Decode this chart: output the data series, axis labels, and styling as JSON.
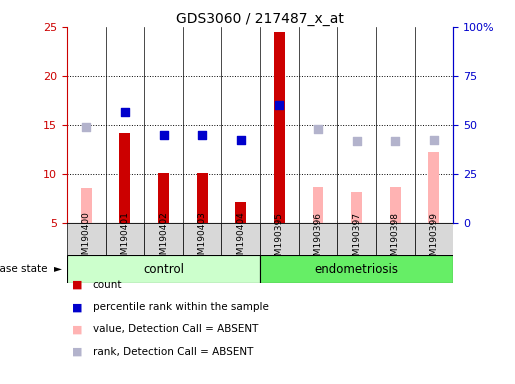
{
  "title": "GDS3060 / 217487_x_at",
  "samples": [
    "GSM190400",
    "GSM190401",
    "GSM190402",
    "GSM190403",
    "GSM190404",
    "GSM190395",
    "GSM190396",
    "GSM190397",
    "GSM190398",
    "GSM190399"
  ],
  "count_bars": [
    null,
    14.2,
    10.1,
    10.1,
    7.1,
    24.5,
    null,
    null,
    null,
    null
  ],
  "value_absent_bars": [
    8.5,
    null,
    null,
    null,
    null,
    null,
    8.6,
    8.1,
    8.6,
    12.2
  ],
  "percentile_rank_dots": [
    null,
    16.3,
    14.0,
    14.0,
    13.4,
    17.0,
    null,
    null,
    null,
    null
  ],
  "rank_absent_dots": [
    14.8,
    null,
    null,
    null,
    null,
    null,
    14.6,
    13.3,
    13.3,
    13.4
  ],
  "ylim": [
    5,
    25
  ],
  "yticks_left": [
    5,
    10,
    15,
    20,
    25
  ],
  "yticks_right": [
    0,
    25,
    50,
    75,
    100
  ],
  "ytick_right_labels": [
    "0",
    "25",
    "50",
    "75",
    "100%"
  ],
  "grid_lines": [
    10,
    15,
    20
  ],
  "count_color": "#cc0000",
  "percentile_color": "#0000cc",
  "value_absent_color": "#ffb3b3",
  "rank_absent_color": "#b3b3cc",
  "bar_width": 0.28,
  "dot_size": 35,
  "control_color": "#ccffcc",
  "endo_color": "#66ee66",
  "sample_bg_color": "#d8d8d8",
  "title_fontsize": 10,
  "axis_color_left": "#cc0000",
  "axis_color_right": "#0000cc",
  "sample_label_fontsize": 6.5,
  "group_label_fontsize": 8.5,
  "legend_fontsize": 7.5,
  "disease_state_fontsize": 7.5
}
